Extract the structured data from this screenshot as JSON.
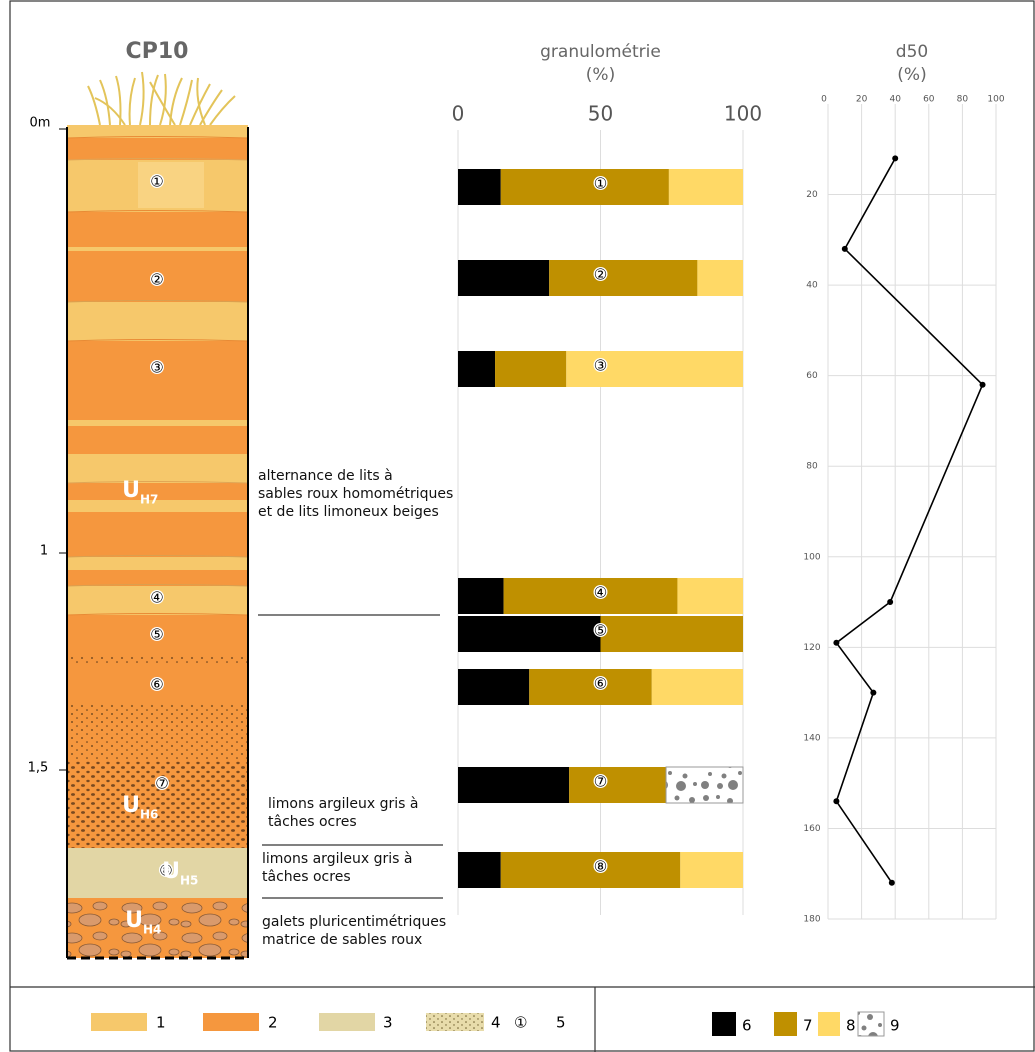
{
  "chart_data": [
    {
      "type": "bar",
      "orientation": "horizontal",
      "stacked": true,
      "title": "granulométrie",
      "subtitle": "(%)",
      "categories": [
        "①",
        "②",
        "③",
        "④",
        "⑤",
        "⑥",
        "⑦",
        "⑧"
      ],
      "series": [
        {
          "name": "6",
          "color": "#000000",
          "values": [
            15,
            32,
            13,
            16,
            50,
            25,
            39,
            15
          ]
        },
        {
          "name": "7",
          "color": "#bf9000",
          "values": [
            59,
            52,
            25,
            61,
            50,
            43,
            34,
            63
          ]
        },
        {
          "name": "8",
          "color": "#ffd966",
          "values": [
            26,
            16,
            62,
            23,
            0,
            32,
            0,
            22
          ]
        },
        {
          "name": "9",
          "color": "#ffffff",
          "pattern": "gravel",
          "values": [
            0,
            0,
            0,
            0,
            0,
            0,
            27,
            0
          ]
        }
      ],
      "xlim": [
        0,
        100
      ],
      "xticks": [
        0,
        50,
        100
      ],
      "grid": true
    },
    {
      "type": "line",
      "orientation": "vertical",
      "title": "d50",
      "subtitle": "(%)",
      "values": [
        40,
        10,
        92,
        37,
        5,
        27,
        5,
        38
      ],
      "depths": [
        12,
        32,
        62,
        110,
        119,
        130,
        154,
        172
      ],
      "color": "#000000",
      "xlim": [
        0,
        100
      ],
      "xticks": [
        0,
        20,
        40,
        60,
        80,
        100
      ],
      "ylim": [
        0,
        180
      ],
      "yticks": [
        20,
        40,
        60,
        80,
        100,
        120,
        140,
        160,
        180
      ],
      "grid": true
    }
  ],
  "column": {
    "title": "CP10",
    "depth_labels": [
      "0m",
      "1",
      "1,5"
    ],
    "samples": [
      "①",
      "②",
      "③",
      "④",
      "⑤",
      "⑥",
      "⑦",
      "⑧"
    ],
    "units": [
      {
        "letter": "U",
        "sub": "H7"
      },
      {
        "letter": "U",
        "sub": "H6"
      },
      {
        "letter": "U",
        "sub": "H5"
      },
      {
        "letter": "U",
        "sub": "H4"
      }
    ],
    "annotations": [
      [
        "alternance de lits à",
        "sables roux homométriques",
        "et de lits limoneux beiges"
      ],
      [
        "limons argileux gris à",
        "tâches ocres"
      ],
      [
        "limons argileux gris à",
        "tâches ocres"
      ],
      [
        "galets pluricentimétriques",
        "matrice de sables roux"
      ]
    ]
  },
  "legend": {
    "items": [
      "1",
      "2",
      "3",
      "4"
    ],
    "symbol": "①",
    "symbol_label": "5"
  }
}
